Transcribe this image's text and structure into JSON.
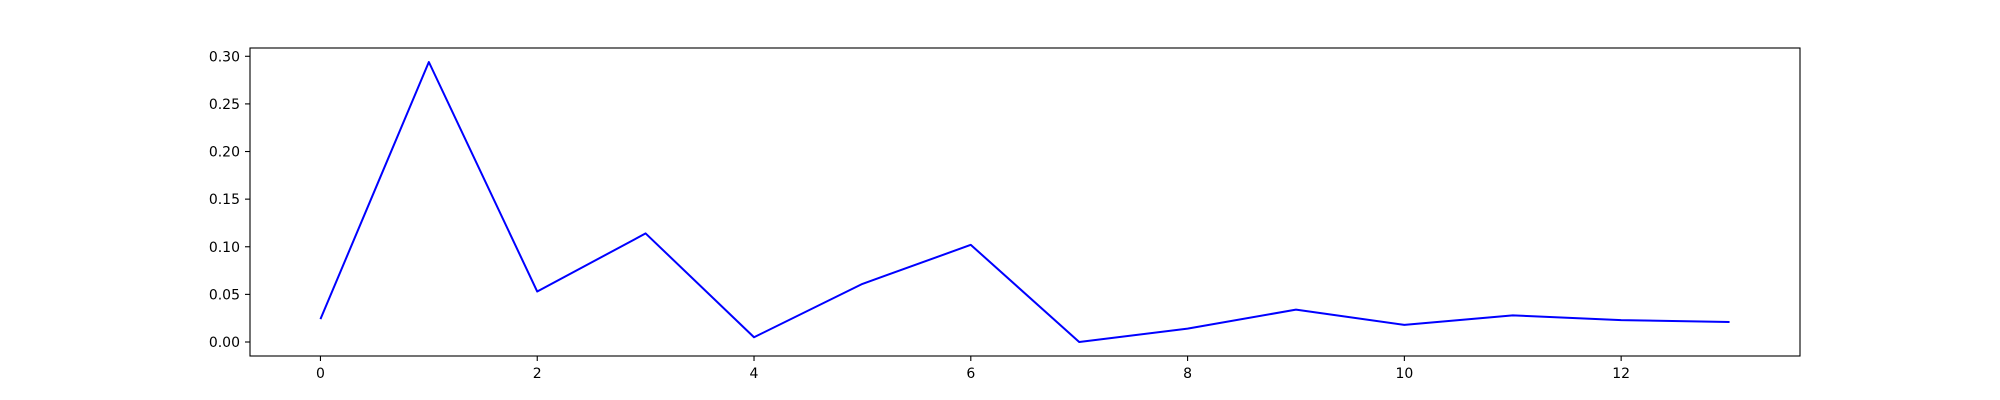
{
  "chart_data": {
    "type": "line",
    "title": "",
    "xlabel": "",
    "ylabel": "",
    "xlim": [
      -0.65,
      13.65
    ],
    "ylim": [
      -0.0147,
      0.3087
    ],
    "x_ticks": [
      0,
      2,
      4,
      6,
      8,
      10,
      12
    ],
    "x_tick_labels": [
      "0",
      "2",
      "4",
      "6",
      "8",
      "10",
      "12"
    ],
    "y_ticks": [
      0.0,
      0.05,
      0.1,
      0.15,
      0.2,
      0.25,
      0.3
    ],
    "y_tick_labels": [
      "0.00",
      "0.05",
      "0.10",
      "0.15",
      "0.20",
      "0.25",
      "0.30"
    ],
    "grid": false,
    "legend": "none",
    "series": [
      {
        "color": "#0000ff",
        "x": [
          0,
          1,
          2,
          3,
          4,
          5,
          6,
          7,
          8,
          9,
          10,
          11,
          12,
          13
        ],
        "values": [
          0.024,
          0.294,
          0.053,
          0.114,
          0.005,
          0.061,
          0.102,
          0.0,
          0.014,
          0.034,
          0.018,
          0.028,
          0.023,
          0.021
        ]
      }
    ]
  }
}
